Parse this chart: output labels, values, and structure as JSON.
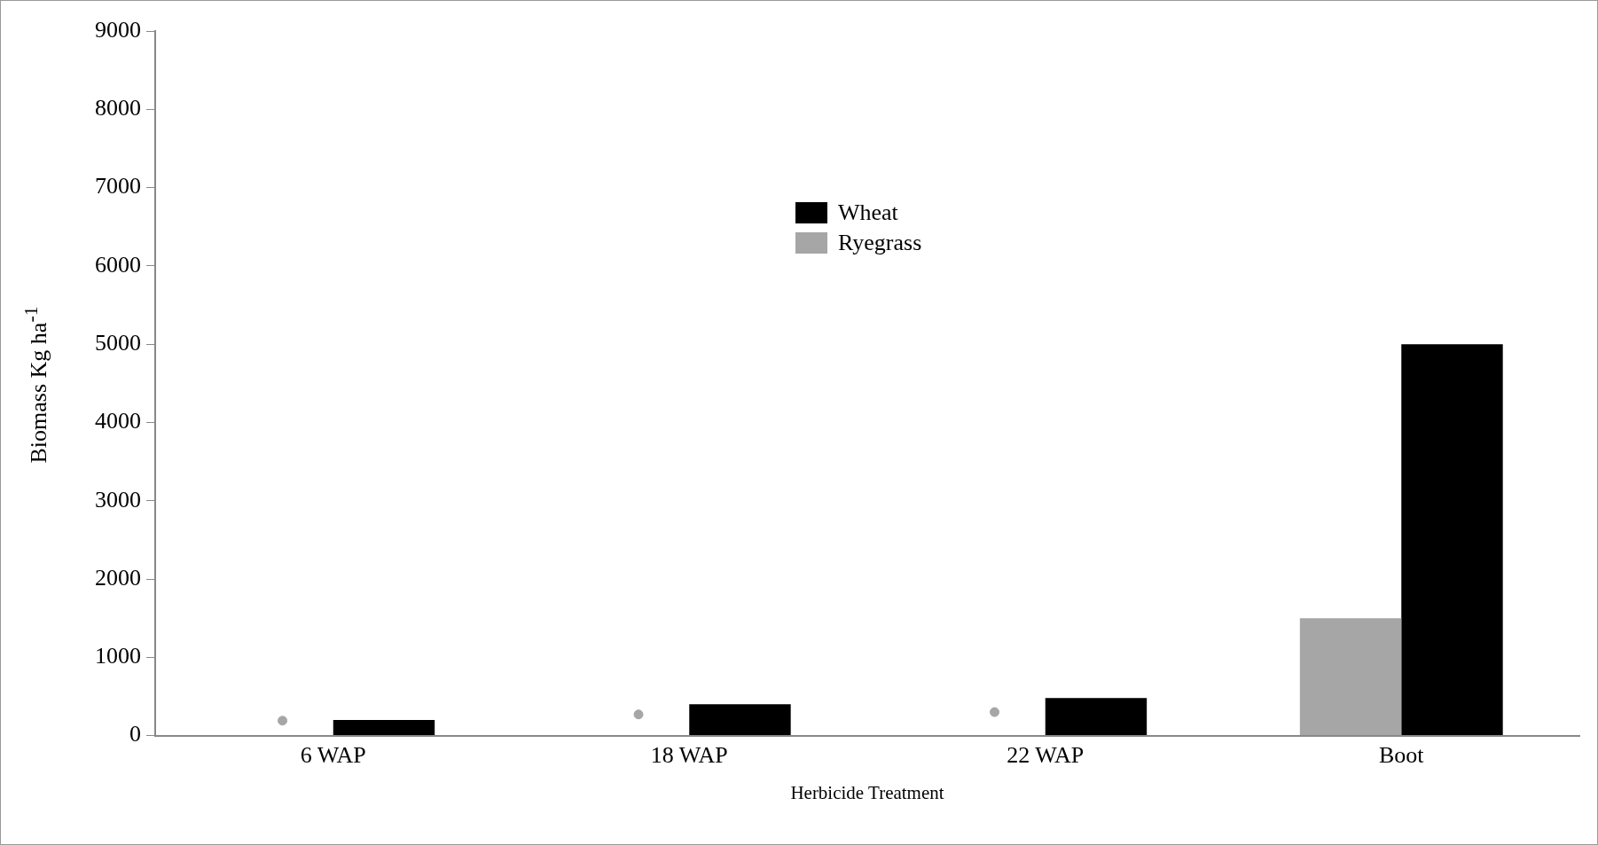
{
  "chart_data": {
    "type": "bar",
    "xlabel": "Herbicide Treatment",
    "ylabel": "Biomass Kg ha$^{-1}$",
    "categories": [
      "6 WAP",
      "18 WAP",
      "22 WAP",
      "Boot"
    ],
    "series": [
      {
        "name": "Ryegrass",
        "color": "#a6a6a6",
        "values": [
          null,
          null,
          null,
          1500
        ]
      },
      {
        "name": "Wheat",
        "color": "#000000",
        "values": [
          200,
          400,
          480,
          5000
        ]
      },
      {
        "type": "scatter",
        "color": "#a6a6a6",
        "x": [
          "6 WAP",
          "18 WAP",
          "22 WAP"
        ],
        "values": [
          190,
          270,
          300
        ]
      }
    ],
    "ylim": [
      0,
      9000
    ],
    "yticks": [
      0,
      1000,
      2000,
      3000,
      4000,
      5000,
      6000,
      7000,
      8000,
      9000
    ],
    "grid": false,
    "legend": "top",
    "marker": "circle"
  }
}
